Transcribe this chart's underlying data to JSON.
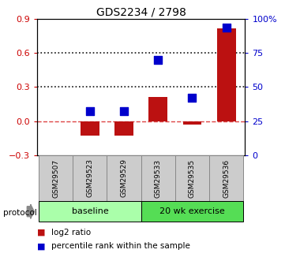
{
  "title": "GDS2234 / 2798",
  "samples": [
    "GSM29507",
    "GSM29523",
    "GSM29529",
    "GSM29533",
    "GSM29535",
    "GSM29536"
  ],
  "log2_ratio": [
    0.0,
    -0.13,
    -0.13,
    0.21,
    -0.03,
    0.82
  ],
  "percentile_rank": [
    null,
    0.32,
    0.32,
    0.7,
    0.42,
    0.94
  ],
  "bar_color": "#bb1111",
  "dot_color": "#0000cc",
  "ylim_left": [
    -0.3,
    0.9
  ],
  "ylim_right": [
    0,
    100
  ],
  "yticks_left": [
    -0.3,
    0.0,
    0.3,
    0.6,
    0.9
  ],
  "yticks_right": [
    0,
    25,
    50,
    75,
    100
  ],
  "ytick_labels_right": [
    "0",
    "25",
    "50",
    "75",
    "100%"
  ],
  "hline_y0": 0.0,
  "hline_y1": 0.3,
  "hline_y2": 0.6,
  "hline_color_dashed": "#dd4444",
  "hline_color_dotted": "#111111",
  "group_spans": [
    [
      0,
      2,
      "baseline",
      "#aaffaa"
    ],
    [
      3,
      5,
      "20 wk exercise",
      "#55dd55"
    ]
  ],
  "protocol_label": "protocol",
  "legend_items": [
    {
      "color": "#bb1111",
      "label": "log2 ratio"
    },
    {
      "color": "#0000cc",
      "label": "percentile rank within the sample"
    }
  ],
  "bar_width": 0.55,
  "dot_size": 55,
  "tick_color_left": "#cc0000",
  "tick_color_right": "#0000cc",
  "sample_box_color": "#cccccc",
  "sample_box_edge": "#888888"
}
